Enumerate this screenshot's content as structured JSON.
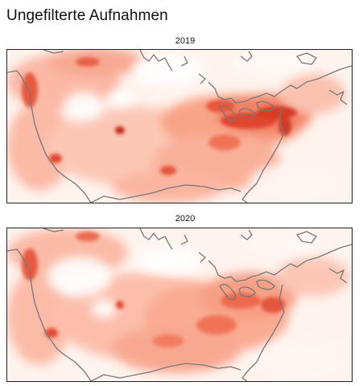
{
  "title": "Ungefilterte Aufnahmen",
  "maps": [
    {
      "label": "2019",
      "colormap": "Reds",
      "coastline_color": "#777777"
    },
    {
      "label": "2020",
      "colormap": "Reds",
      "coastline_color": "#777777"
    }
  ]
}
